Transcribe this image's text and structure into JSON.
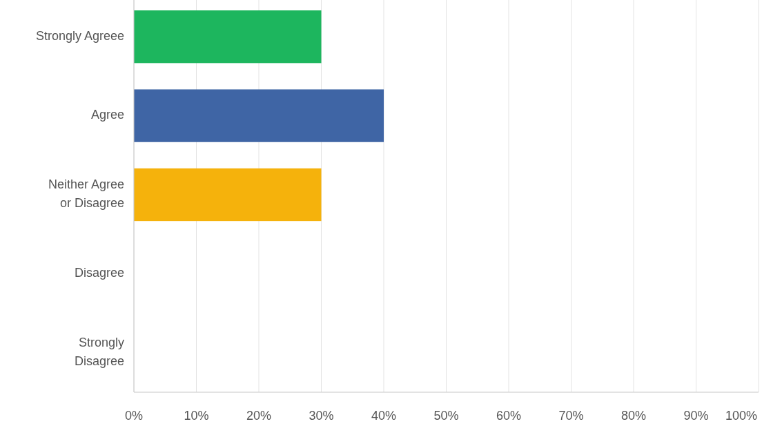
{
  "chart_data": {
    "type": "bar",
    "orientation": "horizontal",
    "categories": [
      "Strongly Agreee",
      "Agree",
      "Neither Agree or Disagree",
      "Disagree",
      "Strongly Disagree"
    ],
    "values": [
      30,
      40,
      30,
      0,
      0
    ],
    "colors": [
      "#1db65e",
      "#3f65a5",
      "#f5b20c",
      "#e05a4a",
      "#8a8a8a"
    ],
    "xlim": [
      0,
      100
    ],
    "xticks": [
      {
        "value": 0,
        "label": "0%"
      },
      {
        "value": 10,
        "label": "10%"
      },
      {
        "value": 20,
        "label": "20%"
      },
      {
        "value": 30,
        "label": "30%"
      },
      {
        "value": 40,
        "label": "40%"
      },
      {
        "value": 50,
        "label": "50%"
      },
      {
        "value": 60,
        "label": "60%"
      },
      {
        "value": 70,
        "label": "70%"
      },
      {
        "value": 80,
        "label": "80%"
      },
      {
        "value": 90,
        "label": "90%"
      },
      {
        "value": 100,
        "label": "100%"
      }
    ],
    "grid": "x"
  }
}
